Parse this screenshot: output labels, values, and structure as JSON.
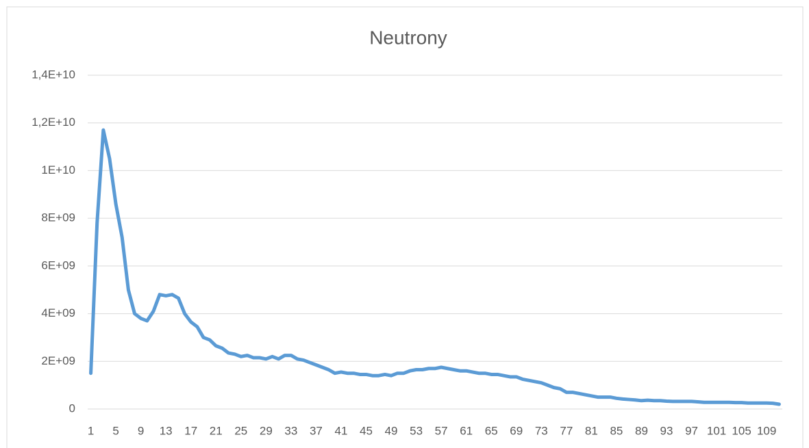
{
  "chart_data": {
    "type": "line",
    "title": "Neutrony",
    "categories": [
      "1",
      null,
      null,
      null,
      "5",
      null,
      null,
      null,
      "9",
      null,
      null,
      null,
      "13",
      null,
      null,
      null,
      "17",
      null,
      null,
      null,
      "21",
      null,
      null,
      null,
      "25",
      null,
      null,
      null,
      "29",
      null,
      null,
      null,
      "33",
      null,
      null,
      null,
      "37",
      null,
      null,
      null,
      "41",
      null,
      null,
      null,
      "45",
      null,
      null,
      null,
      "49",
      null,
      null,
      null,
      "53",
      null,
      null,
      null,
      "57",
      null,
      null,
      null,
      "61",
      null,
      null,
      null,
      "65",
      null,
      null,
      null,
      "69",
      null,
      null,
      null,
      "73",
      null,
      null,
      null,
      "77",
      null,
      null,
      null,
      "81",
      null,
      null,
      null,
      "85",
      null,
      null,
      null,
      "89",
      null,
      null,
      null,
      "93",
      null,
      null,
      null,
      "97",
      null,
      null,
      null,
      "101",
      null,
      null,
      null,
      "105",
      null,
      null,
      null,
      "109",
      null,
      null
    ],
    "series": [
      {
        "color": "#5b9bd5",
        "values": [
          1500000000.0,
          7800000000.0,
          11700000000.0,
          10500000000.0,
          8600000000.0,
          7200000000.0,
          5000000000.0,
          4000000000.0,
          3800000000.0,
          3700000000.0,
          4100000000.0,
          4800000000.0,
          4750000000.0,
          4800000000.0,
          4650000000.0,
          4000000000.0,
          3650000000.0,
          3450000000.0,
          3000000000.0,
          2900000000.0,
          2650000000.0,
          2550000000.0,
          2350000000.0,
          2300000000.0,
          2200000000.0,
          2250000000.0,
          2150000000.0,
          2150000000.0,
          2100000000.0,
          2200000000.0,
          2100000000.0,
          2250000000.0,
          2250000000.0,
          2100000000.0,
          2050000000.0,
          1950000000.0,
          1850000000.0,
          1750000000.0,
          1650000000.0,
          1500000000.0,
          1550000000.0,
          1500000000.0,
          1500000000.0,
          1450000000.0,
          1450000000.0,
          1400000000.0,
          1400000000.0,
          1450000000.0,
          1400000000.0,
          1500000000.0,
          1500000000.0,
          1600000000.0,
          1650000000.0,
          1650000000.0,
          1700000000.0,
          1700000000.0,
          1750000000.0,
          1700000000.0,
          1650000000.0,
          1600000000.0,
          1600000000.0,
          1550000000.0,
          1500000000.0,
          1500000000.0,
          1450000000.0,
          1450000000.0,
          1400000000.0,
          1350000000.0,
          1350000000.0,
          1250000000.0,
          1200000000.0,
          1150000000.0,
          1100000000.0,
          1000000000.0,
          900000000.0,
          850000000.0,
          700000000.0,
          700000000.0,
          650000000.0,
          600000000.0,
          550000000.0,
          500000000.0,
          500000000.0,
          500000000.0,
          450000000.0,
          420000000.0,
          400000000.0,
          380000000.0,
          350000000.0,
          370000000.0,
          350000000.0,
          350000000.0,
          330000000.0,
          320000000.0,
          320000000.0,
          320000000.0,
          320000000.0,
          300000000.0,
          280000000.0,
          280000000.0,
          280000000.0,
          280000000.0,
          280000000.0,
          270000000.0,
          270000000.0,
          250000000.0,
          250000000.0,
          250000000.0,
          250000000.0,
          240000000.0,
          200000000.0
        ]
      }
    ],
    "ylim": [
      0,
      14000000000.0
    ],
    "yticks": [
      0,
      {
        "value": 2000000000.0,
        "label": "2E+09"
      },
      {
        "value": 4000000000.0,
        "label": "4E+09"
      },
      {
        "value": 6000000000.0,
        "label": "6E+09"
      },
      {
        "value": 8000000000.0,
        "label": "8E+09"
      },
      {
        "value": 10000000000.0,
        "label": "1E+10"
      },
      {
        "value": 12000000000.0,
        "label": "1,2E+10"
      },
      {
        "value": 14000000000.0,
        "label": "1,4E+10"
      }
    ],
    "grid": true
  }
}
